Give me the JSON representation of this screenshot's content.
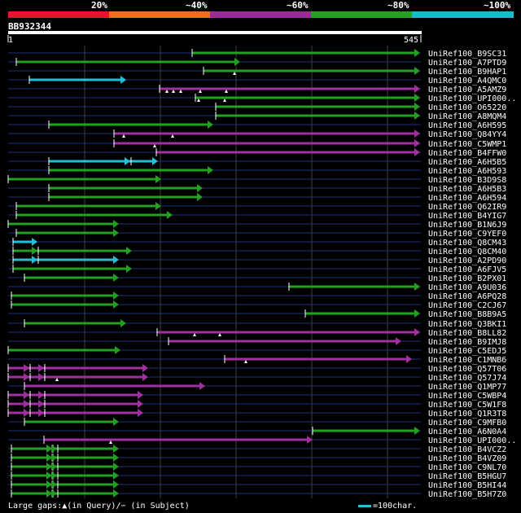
{
  "legend": {
    "segments": [
      {
        "color": "#e8132f"
      },
      {
        "color": "#e8731a"
      },
      {
        "color": "#9a2b9b"
      },
      {
        "color": "#25a020"
      },
      {
        "color": "#1fb8c8"
      }
    ],
    "labels": [
      "20%",
      "~40%",
      "~60%",
      "~80%",
      "~100%"
    ]
  },
  "query": {
    "name": "BB932344",
    "start": "1",
    "end": "545"
  },
  "colors": {
    "green": "#22a022",
    "purple": "#a030a0",
    "cyan": "#20c0d8",
    "line": "#203080",
    "grid": "#404040"
  },
  "hits": [
    {
      "name": "UniRef100_B9SC31"
    },
    {
      "name": "UniRef100_A7PTD9"
    },
    {
      "name": "UniRef100_B9HAP1"
    },
    {
      "name": "UniRef100_A4QMC0"
    },
    {
      "name": "UniRef100_A5AMZ9"
    },
    {
      "name": "UniRef100_UPI000.."
    },
    {
      "name": "UniRef100_O65220"
    },
    {
      "name": "UniRef100_A8MQM4"
    },
    {
      "name": "UniRef100_A6H595"
    },
    {
      "name": "UniRef100_Q84YY4"
    },
    {
      "name": "UniRef100_C5WMP1"
    },
    {
      "name": "UniRef100_B4FFW0"
    },
    {
      "name": "UniRef100_A6H5B5"
    },
    {
      "name": "UniRef100_A6H593"
    },
    {
      "name": "UniRef100_B3D9S8"
    },
    {
      "name": "UniRef100_A6H5B3"
    },
    {
      "name": "UniRef100_A6H594"
    },
    {
      "name": "UniRef100_Q62IR9"
    },
    {
      "name": "UniRef100_B4YIG7"
    },
    {
      "name": "UniRef100_B1N6J9"
    },
    {
      "name": "UniRef100_C9YEF0"
    },
    {
      "name": "UniRef100_Q8CM43"
    },
    {
      "name": "UniRef100_Q8CM40"
    },
    {
      "name": "UniRef100_A2PD90"
    },
    {
      "name": "UniRef100_A6FJV5"
    },
    {
      "name": "UniRef100_B2PX01"
    },
    {
      "name": "UniRef100_A9U036"
    },
    {
      "name": "UniRef100_A6PQ28"
    },
    {
      "name": "UniRef100_C2CJ67"
    },
    {
      "name": "UniRef100_B8B9A5"
    },
    {
      "name": "UniRef100_Q3BKI1"
    },
    {
      "name": "UniRef100_B8LL82"
    },
    {
      "name": "UniRef100_B9IMJ8"
    },
    {
      "name": "UniRef100_C5EDJ5"
    },
    {
      "name": "UniRef100_C1MNB6"
    },
    {
      "name": "UniRef100_Q57T06"
    },
    {
      "name": "UniRef100_Q57J74"
    },
    {
      "name": "UniRef100_Q1MP77"
    },
    {
      "name": "UniRef100_C5WBP4"
    },
    {
      "name": "UniRef100_C5W1F8"
    },
    {
      "name": "UniRef100_Q1R3T8"
    },
    {
      "name": "UniRef100_C9MFB0"
    },
    {
      "name": "UniRef100_A6N0A4"
    },
    {
      "name": "UniRef100_UPI000.."
    },
    {
      "name": "UniRef100_B4VCZ2"
    },
    {
      "name": "UniRef100_B4VZ09"
    },
    {
      "name": "UniRef100_C9NL70"
    },
    {
      "name": "UniRef100_B5HGU7"
    },
    {
      "name": "UniRef100_B5HI44"
    },
    {
      "name": "UniRef100_B5H7Z0"
    }
  ],
  "footer": {
    "text": "Large gaps:▲(in Query)/− (in Subject)",
    "scale_label": "=100char."
  }
}
